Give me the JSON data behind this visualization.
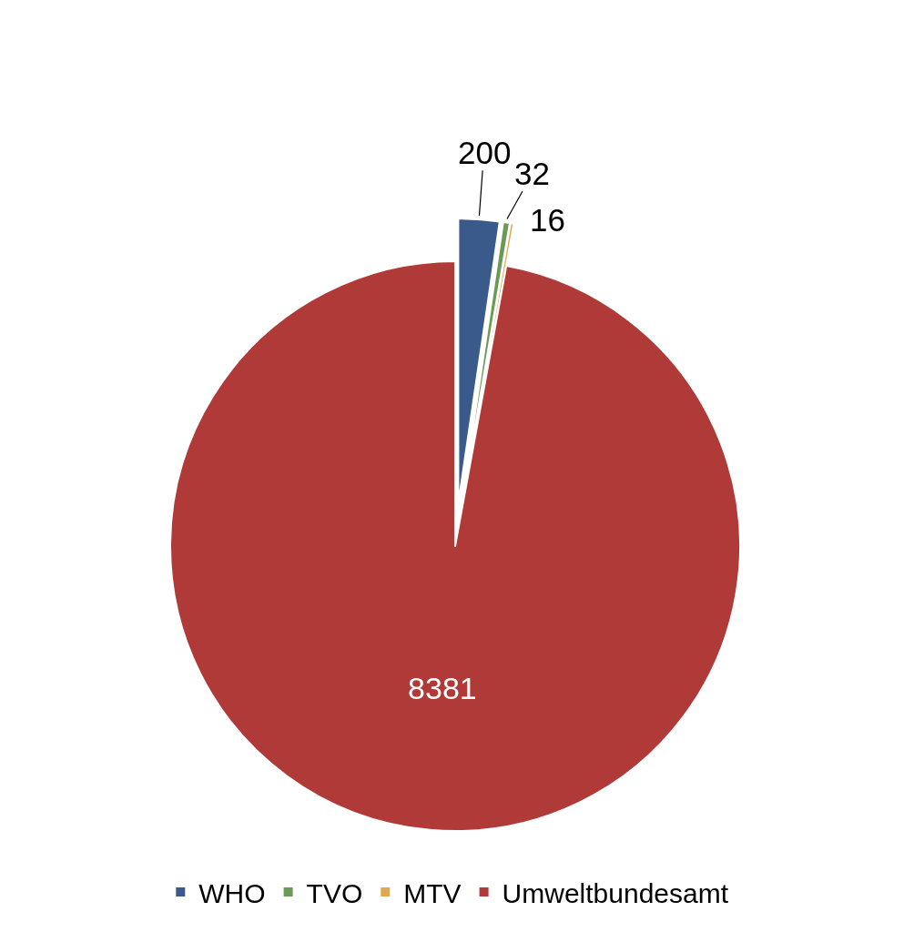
{
  "chart_data": {
    "type": "pie",
    "categories": [
      "WHO",
      "TVO",
      "MTV",
      "Umweltbundesamt"
    ],
    "values": [
      200,
      32,
      16,
      8381
    ],
    "colors": [
      "#3a5a8c",
      "#6a9a55",
      "#e0a84f",
      "#b03a38"
    ],
    "data_labels": true,
    "legend": "bottom"
  }
}
